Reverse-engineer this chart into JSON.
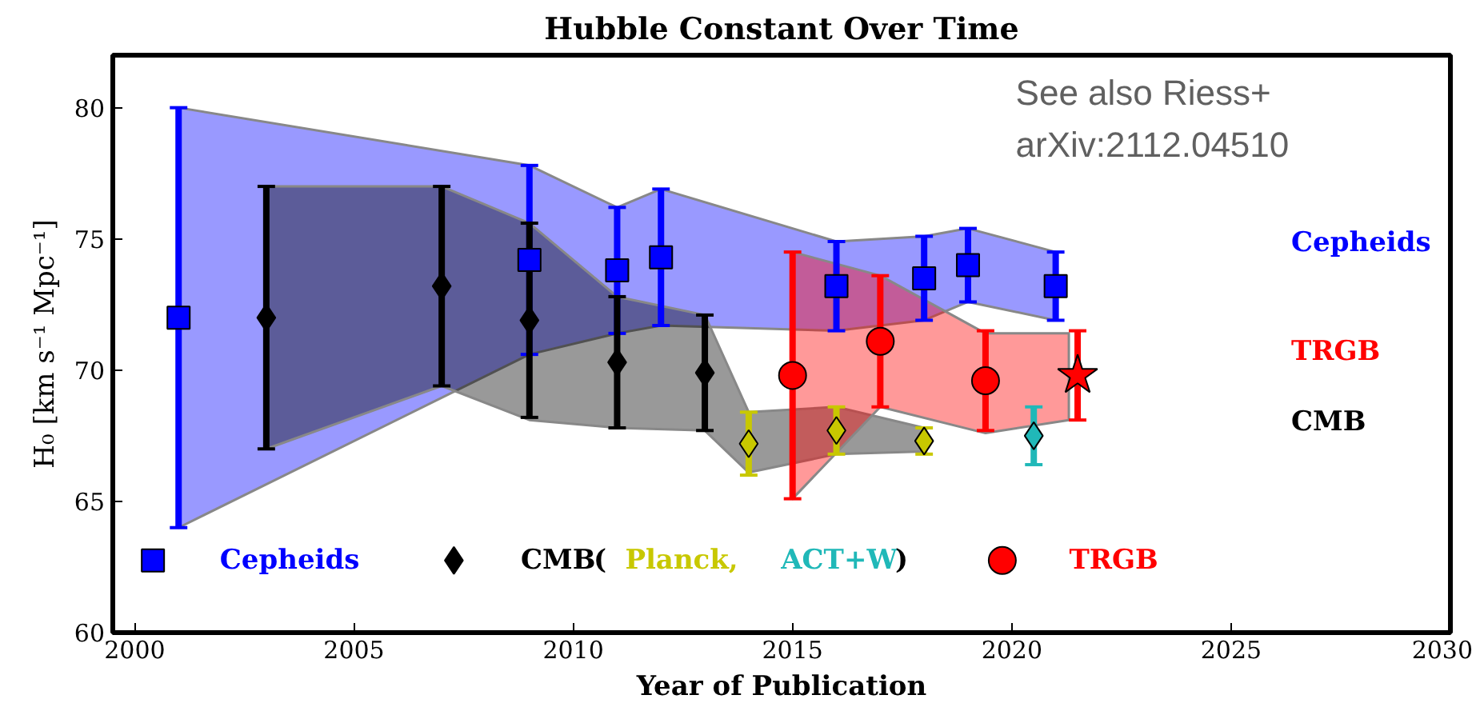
{
  "chart_data": {
    "type": "scatter",
    "title": "Hubble Constant Over Time",
    "xlabel": "Year of Publication",
    "ylabel": "H₀ [km s⁻¹ Mpc⁻¹]",
    "xlim": [
      1999.5,
      2030
    ],
    "ylim": [
      60,
      82
    ],
    "xticks": [
      2000,
      2005,
      2010,
      2015,
      2020,
      2025,
      2030
    ],
    "yticks": [
      60,
      65,
      70,
      75,
      80
    ],
    "grid": false,
    "legend": "bottom",
    "annotations": [
      "See also Riess+\narXiv:2112.04510",
      "(",
      ")"
    ],
    "series": [
      {
        "type": "line",
        "color": "#0000ff",
        "x": [
          2001,
          2009,
          2011,
          2012,
          2016,
          2018,
          2019,
          2021
        ],
        "values": [
          null,
          null,
          null,
          null,
          null,
          null,
          null,
          null
        ],
        "lower": [
          64,
          70.6,
          71.4,
          71.7,
          71.5,
          71.9,
          72.6,
          71.9
        ],
        "upper": [
          80,
          77.8,
          76.2,
          76.9,
          74.9,
          75.1,
          75.4,
          74.5
        ]
      },
      {
        "type": "line",
        "color": "#000000",
        "x": [
          2003,
          2007,
          2009,
          2011,
          2013,
          2014,
          2016,
          2018
        ],
        "values": [
          null,
          null,
          null,
          null,
          null,
          null,
          null,
          null
        ],
        "lower": [
          67,
          69.4,
          68.1,
          67.8,
          67.7,
          66.1,
          66.8,
          66.9
        ],
        "upper": [
          77,
          77,
          75.6,
          72.8,
          72.1,
          68.4,
          68.6,
          67.8
        ]
      },
      {
        "type": "line",
        "color": "#ff0000",
        "x": [
          2015,
          2017,
          2019.4,
          2021.3
        ],
        "values": [
          null,
          null,
          null,
          null
        ],
        "lower": [
          65.1,
          68.6,
          67.6,
          68.1
        ],
        "upper": [
          74.5,
          73.6,
          71.4,
          71.4
        ]
      },
      {
        "name": "Cepheids",
        "color": "#0000ff",
        "marker": "square",
        "x": [
          2001,
          2009,
          2011,
          2012,
          2016,
          2018,
          2019,
          2021
        ],
        "values": [
          72,
          74.2,
          73.8,
          74.3,
          73.2,
          73.5,
          74.0,
          73.2
        ],
        "errors": [
          8,
          3.6,
          2.4,
          2.6,
          1.7,
          1.6,
          1.4,
          1.3
        ]
      },
      {
        "name": "CMB",
        "color": "#000000",
        "marker": "diamond",
        "x": [
          2003,
          2007,
          2009,
          2011,
          2013
        ],
        "values": [
          72,
          73.2,
          71.9,
          70.3,
          69.9
        ],
        "errors": [
          5,
          3.8,
          3.7,
          2.5,
          2.2
        ]
      },
      {
        "name": "Planck,",
        "color": "#c8c800",
        "marker": "diamond",
        "x": [
          2014,
          2016,
          2018
        ],
        "values": [
          67.2,
          67.7,
          67.3
        ],
        "errors": [
          1.2,
          0.9,
          0.5
        ]
      },
      {
        "name": "ACT+W",
        "color": "#20b8b8",
        "marker": "diamond",
        "x": [
          2020.5
        ],
        "values": [
          67.5
        ],
        "errors": [
          1.1
        ]
      },
      {
        "name": "TRGB",
        "color": "#ff0000",
        "marker": "circle",
        "x": [
          2015,
          2017,
          2019.4
        ],
        "values": [
          69.8,
          71.1,
          69.6
        ],
        "errors": [
          4.7,
          2.5,
          1.9
        ]
      },
      {
        "color": "#ff0000",
        "marker": "star",
        "x": [
          2021.5
        ],
        "values": [
          69.8
        ],
        "errors": [
          1.7
        ]
      }
    ]
  }
}
